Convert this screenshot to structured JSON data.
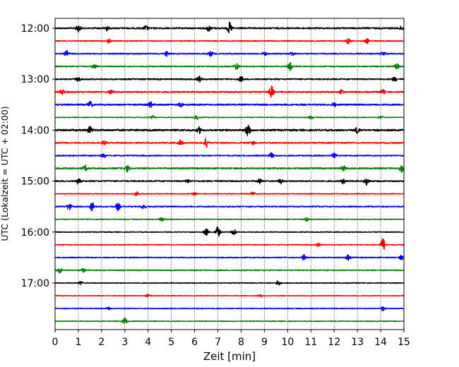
{
  "chart_data": {
    "type": "line",
    "title": "",
    "xlabel": "Zeit  [min]",
    "ylabel": "UTC (Lokalzeit = UTC + 02:00)",
    "xlim": [
      0,
      15
    ],
    "x_ticks": [
      0,
      1,
      2,
      3,
      4,
      5,
      6,
      7,
      8,
      9,
      10,
      11,
      12,
      13,
      14,
      15
    ],
    "x_grid": "dotted vertical lines at each minute",
    "y_ticks": [
      "12:00",
      "13:00",
      "14:00",
      "15:00",
      "16:00",
      "17:00"
    ],
    "trace_interval_min": 15,
    "start_time": "12:00",
    "end_time": "17:45",
    "color_cycle": [
      "#000000",
      "#ff0000",
      "#0000ff",
      "#008000"
    ],
    "series": [
      {
        "time": "12:00",
        "color": "#000000",
        "events_min": [
          1.0,
          2.2,
          3.9,
          6.6,
          7.5,
          14.9
        ],
        "event_amp": [
          0.7,
          0.5,
          0.5,
          0.6,
          1.2,
          0.4
        ],
        "noise": 0.45
      },
      {
        "time": "12:15",
        "color": "#ff0000",
        "events_min": [
          2.3,
          12.6,
          13.4
        ],
        "event_amp": [
          0.4,
          0.6,
          0.5
        ],
        "noise": 0.3
      },
      {
        "time": "12:30",
        "color": "#0000ff",
        "events_min": [
          0.5,
          4.8,
          6.7,
          9.0,
          10.2,
          14.1
        ],
        "event_amp": [
          0.6,
          0.5,
          0.5,
          0.4,
          0.4,
          0.5
        ],
        "noise": 0.35
      },
      {
        "time": "12:45",
        "color": "#008000",
        "events_min": [
          1.7,
          7.8,
          10.1,
          14.7
        ],
        "event_amp": [
          0.4,
          0.7,
          0.9,
          0.6
        ],
        "noise": 0.35
      },
      {
        "time": "13:00",
        "color": "#000000",
        "events_min": [
          1.0,
          6.2,
          8.0,
          14.6
        ],
        "event_amp": [
          0.5,
          0.6,
          0.5,
          0.4
        ],
        "noise": 0.4
      },
      {
        "time": "13:15",
        "color": "#ff0000",
        "events_min": [
          0.3,
          2.4,
          9.3,
          12.3,
          14.1
        ],
        "event_amp": [
          0.6,
          0.5,
          1.3,
          0.5,
          0.5
        ],
        "noise": 0.4
      },
      {
        "time": "13:30",
        "color": "#0000ff",
        "events_min": [
          1.5,
          4.1,
          5.4,
          12.0
        ],
        "event_amp": [
          0.7,
          0.6,
          0.4,
          0.4
        ],
        "noise": 0.45
      },
      {
        "time": "13:45",
        "color": "#008000",
        "events_min": [
          4.2,
          6.1,
          11.0,
          14.0
        ],
        "event_amp": [
          0.3,
          0.4,
          0.3,
          0.3
        ],
        "noise": 0.25
      },
      {
        "time": "14:00",
        "color": "#000000",
        "events_min": [
          1.5,
          6.2,
          8.3,
          13.0
        ],
        "event_amp": [
          0.8,
          0.6,
          1.5,
          0.6
        ],
        "noise": 0.55
      },
      {
        "time": "14:15",
        "color": "#ff0000",
        "events_min": [
          2.1,
          5.4,
          6.5,
          8.5
        ],
        "event_amp": [
          0.5,
          0.6,
          1.0,
          0.4
        ],
        "noise": 0.35
      },
      {
        "time": "14:30",
        "color": "#0000ff",
        "events_min": [
          2.1,
          9.3,
          12.0
        ],
        "event_amp": [
          0.4,
          0.6,
          0.5
        ],
        "noise": 0.35
      },
      {
        "time": "14:45",
        "color": "#008000",
        "events_min": [
          1.3,
          3.1,
          12.4,
          14.9
        ],
        "event_amp": [
          0.6,
          0.7,
          0.5,
          0.8
        ],
        "noise": 0.45
      },
      {
        "time": "15:00",
        "color": "#000000",
        "events_min": [
          1.0,
          5.7,
          8.8,
          9.7,
          12.4,
          13.4
        ],
        "event_amp": [
          0.6,
          0.4,
          0.5,
          0.5,
          0.5,
          0.8
        ],
        "noise": 0.4
      },
      {
        "time": "15:15",
        "color": "#ff0000",
        "events_min": [
          3.5,
          6.0,
          8.5
        ],
        "event_amp": [
          0.4,
          0.3,
          0.4
        ],
        "noise": 0.25
      },
      {
        "time": "15:30",
        "color": "#0000ff",
        "events_min": [
          0.6,
          1.6,
          2.7,
          3.8
        ],
        "event_amp": [
          0.7,
          1.0,
          0.8,
          0.5
        ],
        "noise": 0.35
      },
      {
        "time": "15:45",
        "color": "#008000",
        "events_min": [
          4.6,
          10.8
        ],
        "event_amp": [
          0.5,
          0.4
        ],
        "noise": 0.25
      },
      {
        "time": "16:00",
        "color": "#000000",
        "events_min": [
          6.5,
          7.0,
          7.7
        ],
        "event_amp": [
          0.8,
          1.2,
          0.8
        ],
        "noise": 0.25
      },
      {
        "time": "16:15",
        "color": "#ff0000",
        "events_min": [
          11.3,
          14.1
        ],
        "event_amp": [
          0.4,
          1.4
        ],
        "noise": 0.25
      },
      {
        "time": "16:30",
        "color": "#0000ff",
        "events_min": [
          10.7,
          12.6,
          14.9
        ],
        "event_amp": [
          0.6,
          0.6,
          0.5
        ],
        "noise": 0.3
      },
      {
        "time": "16:45",
        "color": "#008000",
        "events_min": [
          0.2,
          1.2
        ],
        "event_amp": [
          0.6,
          0.4
        ],
        "noise": 0.3
      },
      {
        "time": "17:00",
        "color": "#000000",
        "events_min": [
          1.1,
          9.6
        ],
        "event_amp": [
          0.4,
          0.5
        ],
        "noise": 0.25
      },
      {
        "time": "17:15",
        "color": "#ff0000",
        "events_min": [
          4.0,
          8.8
        ],
        "event_amp": [
          0.3,
          0.3
        ],
        "noise": 0.2
      },
      {
        "time": "17:30",
        "color": "#0000ff",
        "events_min": [
          2.3,
          14.1
        ],
        "event_amp": [
          0.3,
          0.5
        ],
        "noise": 0.25
      },
      {
        "time": "17:45",
        "color": "#008000",
        "events_min": [
          3.0
        ],
        "event_amp": [
          0.7
        ],
        "noise": 0.25
      }
    ]
  }
}
